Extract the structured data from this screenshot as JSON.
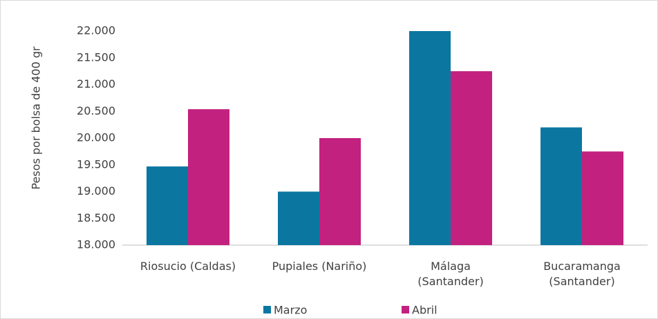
{
  "chart_data": {
    "type": "bar",
    "y_label": "Pesos por bolsa de 400 gr",
    "categories": [
      "Riosucio (Caldas)",
      "Pupiales (Nariño)",
      "Málaga\n(Santander)",
      "Bucaramanga\n(Santander)"
    ],
    "series": [
      {
        "name": "Marzo",
        "color": "#0b77a1",
        "values": [
          19470,
          19000,
          22000,
          20200
        ]
      },
      {
        "name": "Abril",
        "color": "#c2217f",
        "values": [
          20540,
          20000,
          21250,
          19750
        ]
      }
    ],
    "ylim": [
      18000,
      22000
    ],
    "yticks": [
      {
        "value": 18000,
        "label": "18.000"
      },
      {
        "value": 18500,
        "label": "18.500"
      },
      {
        "value": 19000,
        "label": "19.000"
      },
      {
        "value": 19500,
        "label": "19.500"
      },
      {
        "value": 20000,
        "label": "20.000"
      },
      {
        "value": 20500,
        "label": "20.500"
      },
      {
        "value": 21000,
        "label": "21.000"
      },
      {
        "value": 21500,
        "label": "21.500"
      },
      {
        "value": 22000,
        "label": "22.000"
      }
    ],
    "grid": false,
    "legend": "bottom"
  }
}
